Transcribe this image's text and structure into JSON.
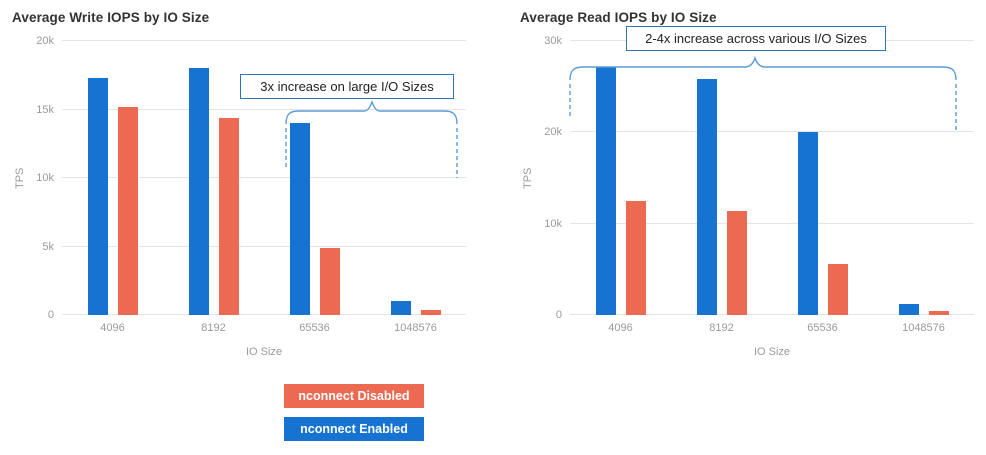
{
  "chart_data": [
    {
      "type": "bar",
      "title": "Average Write IOPS by IO Size",
      "xlabel": "IO Size",
      "ylabel": "TPS",
      "ylim": [
        0,
        20000
      ],
      "grid": true,
      "annotation": "3x increase on large I/O Sizes",
      "yticks": [
        {
          "value": 0,
          "label": "0"
        },
        {
          "value": 5000,
          "label": "5k"
        },
        {
          "value": 10000,
          "label": "10k"
        },
        {
          "value": 15000,
          "label": "15k"
        },
        {
          "value": 20000,
          "label": "20k"
        }
      ],
      "categories": [
        "4096",
        "8192",
        "65536",
        "1048576"
      ],
      "series": [
        {
          "name": "nconnect Enabled",
          "color": "#1673d2",
          "values": [
            17300,
            18000,
            14000,
            1000
          ]
        },
        {
          "name": "nconnect Disabled",
          "color": "#ec6a51",
          "values": [
            15200,
            14400,
            4900,
            350
          ]
        }
      ]
    },
    {
      "type": "bar",
      "title": "Average Read IOPS by IO Size",
      "xlabel": "IO Size",
      "ylabel": "TPS",
      "ylim": [
        0,
        30000
      ],
      "grid": true,
      "annotation": "2-4x increase across various I/O Sizes",
      "yticks": [
        {
          "value": 0,
          "label": "0"
        },
        {
          "value": 10000,
          "label": "10k"
        },
        {
          "value": 20000,
          "label": "20k"
        },
        {
          "value": 30000,
          "label": "30k"
        }
      ],
      "categories": [
        "4096",
        "8192",
        "65536",
        "1048576"
      ],
      "series": [
        {
          "name": "nconnect Enabled",
          "color": "#1673d2",
          "values": [
            27200,
            25800,
            20000,
            1200
          ]
        },
        {
          "name": "nconnect Disabled",
          "color": "#ec6a51",
          "values": [
            12500,
            11400,
            5600,
            450
          ]
        }
      ]
    }
  ],
  "legend": {
    "items": [
      {
        "label": "nconnect Disabled",
        "color": "#ec6a51"
      },
      {
        "label": "nconnect Enabled",
        "color": "#1673d2"
      }
    ]
  },
  "colors": {
    "enabled_blue": "#1673d2",
    "disabled_orange": "#ec6a51",
    "annotation_border": "#2e74b5",
    "brace_blue": "#5b9bd5",
    "grid": "#e4e4e4",
    "axis_text": "#9a9a9a"
  }
}
